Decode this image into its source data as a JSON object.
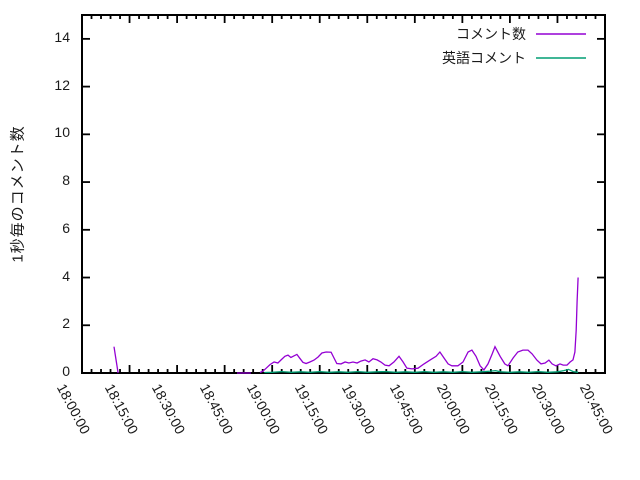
{
  "figure": {
    "background": "#ffffff",
    "ylabel": "1秒毎のコメント数",
    "frame_color": "#000000",
    "text_color": "#1a1a1a"
  },
  "legend": {
    "position": "top-right-inside",
    "items": [
      {
        "label": "コメント数",
        "color": "#9400d3"
      },
      {
        "label": "英語コメント",
        "color": "#009e73"
      }
    ]
  },
  "chart_data": {
    "type": "line",
    "title": "",
    "xlabel": "",
    "ylabel": "1秒毎のコメント数",
    "grid": false,
    "legend_position": "top-right-inside",
    "x_unit": "minutes after 18:00:00",
    "x_range_minutes": [
      0,
      165
    ],
    "x_major_tick_minutes": 15,
    "x_minor_tick_minutes": 3,
    "x_tick_labels": [
      "18:00:00",
      "18:15:00",
      "18:30:00",
      "18:45:00",
      "19:00:00",
      "19:15:00",
      "19:30:00",
      "19:45:00",
      "20:00:00",
      "20:15:00",
      "20:30:00",
      "20:45:00"
    ],
    "ylim": [
      0,
      15
    ],
    "y_ticks": [
      0,
      2,
      4,
      6,
      8,
      10,
      12,
      14
    ],
    "series": [
      {
        "name": "コメント数",
        "color": "#9400d3",
        "segments": [
          [
            [
              10.1,
              1.1
            ],
            [
              11.4,
              0
            ]
          ],
          [
            [
              48.9,
              0
            ],
            [
              53.3,
              0
            ]
          ],
          [
            [
              56.2,
              0.02
            ],
            [
              57.1,
              0.08
            ],
            [
              58.1,
              0.2
            ],
            [
              59.3,
              0.35
            ],
            [
              60.6,
              0.46
            ],
            [
              61.8,
              0.42
            ],
            [
              62.8,
              0.55
            ],
            [
              64.0,
              0.7
            ],
            [
              65.0,
              0.75
            ],
            [
              65.9,
              0.65
            ],
            [
              66.9,
              0.72
            ],
            [
              67.8,
              0.78
            ],
            [
              68.8,
              0.6
            ],
            [
              69.7,
              0.45
            ],
            [
              70.7,
              0.4
            ],
            [
              71.9,
              0.46
            ],
            [
              73.2,
              0.54
            ],
            [
              74.5,
              0.67
            ],
            [
              75.7,
              0.84
            ],
            [
              77.0,
              0.88
            ],
            [
              78.6,
              0.87
            ],
            [
              79.5,
              0.63
            ],
            [
              80.4,
              0.4
            ],
            [
              81.7,
              0.38
            ],
            [
              83.0,
              0.46
            ],
            [
              84.2,
              0.42
            ],
            [
              85.5,
              0.46
            ],
            [
              86.8,
              0.42
            ],
            [
              88.0,
              0.5
            ],
            [
              89.3,
              0.55
            ],
            [
              90.5,
              0.46
            ],
            [
              91.8,
              0.6
            ],
            [
              93.1,
              0.55
            ],
            [
              94.3,
              0.46
            ],
            [
              95.6,
              0.33
            ],
            [
              96.9,
              0.3
            ],
            [
              98.4,
              0.46
            ],
            [
              100.0,
              0.7
            ],
            [
              101.3,
              0.46
            ],
            [
              102.5,
              0.2
            ],
            [
              104.1,
              0.17
            ],
            [
              106.0,
              0.2
            ],
            [
              107.9,
              0.38
            ],
            [
              109.8,
              0.54
            ],
            [
              111.7,
              0.7
            ],
            [
              112.9,
              0.88
            ],
            [
              114.2,
              0.63
            ],
            [
              115.5,
              0.38
            ],
            [
              116.7,
              0.3
            ],
            [
              118.6,
              0.3
            ],
            [
              120.2,
              0.46
            ],
            [
              121.8,
              0.88
            ],
            [
              123.0,
              0.96
            ],
            [
              124.3,
              0.7
            ],
            [
              125.6,
              0.3
            ],
            [
              126.8,
              0.13
            ],
            [
              128.1,
              0.38
            ],
            [
              129.4,
              0.8
            ],
            [
              130.3,
              1.1
            ],
            [
              131.9,
              0.7
            ],
            [
              133.4,
              0.38
            ],
            [
              134.4,
              0.3
            ],
            [
              136.0,
              0.63
            ],
            [
              137.5,
              0.88
            ],
            [
              139.1,
              0.96
            ],
            [
              140.7,
              0.96
            ],
            [
              142.0,
              0.8
            ],
            [
              143.5,
              0.54
            ],
            [
              144.8,
              0.38
            ],
            [
              146.1,
              0.42
            ],
            [
              147.3,
              0.54
            ],
            [
              148.3,
              0.38
            ],
            [
              149.5,
              0.3
            ],
            [
              150.8,
              0.38
            ],
            [
              151.8,
              0.33
            ],
            [
              153.0,
              0.33
            ],
            [
              154.0,
              0.46
            ],
            [
              154.9,
              0.55
            ],
            [
              155.5,
              0.88
            ],
            [
              155.9,
              1.8
            ],
            [
              156.2,
              3.0
            ],
            [
              156.5,
              4.0
            ]
          ]
        ]
      },
      {
        "name": "英語コメント",
        "color": "#009e73",
        "segments": [
          [
            [
              57.5,
              0.02
            ],
            [
              60,
              0.03
            ],
            [
              63,
              0.06
            ],
            [
              66,
              0.03
            ],
            [
              69,
              0.05
            ],
            [
              72,
              0.03
            ],
            [
              75,
              0.06
            ],
            [
              78,
              0.03
            ],
            [
              81,
              0.05
            ],
            [
              84,
              0.03
            ],
            [
              87,
              0.06
            ],
            [
              90,
              0.03
            ],
            [
              93,
              0.05
            ],
            [
              96,
              0.06
            ],
            [
              99,
              0.03
            ],
            [
              102,
              0.05
            ],
            [
              105,
              0.03
            ],
            [
              108,
              0.06
            ],
            [
              111,
              0.03
            ],
            [
              114,
              0.05
            ],
            [
              117,
              0.03
            ],
            [
              120,
              0.06
            ],
            [
              123,
              0.03
            ],
            [
              126,
              0.05
            ],
            [
              129,
              0.08
            ],
            [
              130.5,
              0.1
            ],
            [
              132,
              0.05
            ],
            [
              135,
              0.03
            ],
            [
              138,
              0.05
            ],
            [
              141,
              0.03
            ],
            [
              144,
              0.06
            ],
            [
              147,
              0.03
            ],
            [
              150,
              0.05
            ],
            [
              152,
              0.1
            ],
            [
              153.5,
              0.15
            ],
            [
              155,
              0.06
            ],
            [
              156.5,
              0.03
            ]
          ]
        ]
      }
    ]
  }
}
